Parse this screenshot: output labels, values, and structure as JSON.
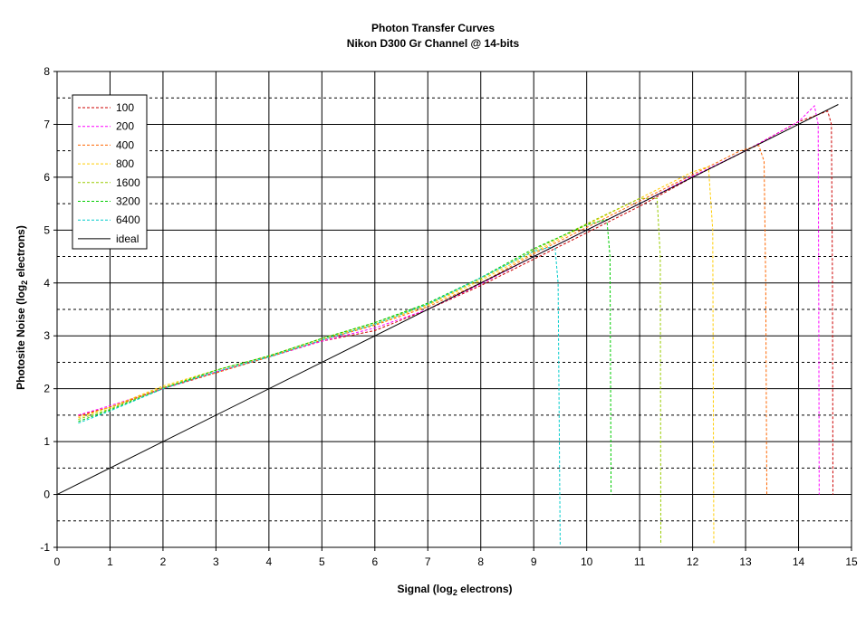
{
  "chart_data": {
    "type": "line",
    "title": "Photon Transfer Curves",
    "subtitle": "Nikon D300 Gr Channel @ 14-bits",
    "xlabel": {
      "prefix": "Signal (log",
      "sub": "2",
      "suffix": " electrons)"
    },
    "ylabel": {
      "prefix": "Photosite Noise (log",
      "sub": "2",
      "suffix": " electrons)"
    },
    "xlim": [
      0,
      15
    ],
    "ylim": [
      -1,
      8
    ],
    "xticks": [
      "0",
      "1",
      "2",
      "3",
      "4",
      "5",
      "6",
      "7",
      "8",
      "9",
      "10",
      "11",
      "12",
      "13",
      "14",
      "15"
    ],
    "yticks": [
      "-1",
      "0",
      "1",
      "2",
      "3",
      "4",
      "5",
      "6",
      "7",
      "8"
    ],
    "grid": {
      "major_x": true,
      "major_y": true,
      "minor_y_dashed": true
    },
    "legend": {
      "placement": "top-left"
    },
    "ideal": {
      "name": "ideal",
      "color": "#000000",
      "x": [
        0,
        14.75
      ],
      "y": [
        0,
        7.375
      ]
    },
    "series": [
      {
        "name": "100",
        "color": "#cc0000",
        "x": [
          0.4,
          1,
          2,
          3,
          4,
          5,
          6,
          7,
          8,
          9,
          10,
          11,
          12,
          13,
          14,
          14.55,
          14.62,
          14.64,
          14.65
        ],
        "y": [
          1.5,
          1.65,
          2.0,
          2.3,
          2.6,
          2.9,
          3.1,
          3.5,
          3.95,
          4.45,
          4.95,
          5.45,
          6.0,
          6.5,
          7.05,
          7.25,
          7.0,
          4.0,
          0.0
        ]
      },
      {
        "name": "200",
        "color": "#ff00ff",
        "x": [
          0.4,
          1,
          2,
          3,
          4,
          5,
          6,
          7,
          8,
          9,
          10,
          11,
          12,
          13,
          14,
          14.3,
          14.37,
          14.38,
          14.39
        ],
        "y": [
          1.5,
          1.68,
          2.0,
          2.32,
          2.6,
          2.9,
          3.15,
          3.5,
          3.98,
          4.5,
          5.0,
          5.5,
          6.02,
          6.5,
          7.05,
          7.35,
          7.0,
          4.0,
          0.0
        ]
      },
      {
        "name": "400",
        "color": "#ff6600",
        "x": [
          0.4,
          1,
          2,
          3,
          4,
          5,
          6,
          7,
          8,
          9,
          10,
          11,
          12,
          12.9,
          13.25,
          13.35,
          13.38,
          13.4
        ],
        "y": [
          1.48,
          1.65,
          2.02,
          2.3,
          2.6,
          2.92,
          3.2,
          3.55,
          4.0,
          4.55,
          5.05,
          5.55,
          6.05,
          6.5,
          6.6,
          6.3,
          4.0,
          0.0
        ]
      },
      {
        "name": "800",
        "color": "#ffcc00",
        "x": [
          0.4,
          1,
          2,
          3,
          4,
          5,
          6,
          7,
          8,
          9,
          10,
          11,
          12,
          12.3,
          12.38,
          12.4
        ],
        "y": [
          1.45,
          1.65,
          2.05,
          2.35,
          2.62,
          2.95,
          3.22,
          3.58,
          4.05,
          4.58,
          5.1,
          5.6,
          6.1,
          6.2,
          5.0,
          -0.95
        ]
      },
      {
        "name": "1600",
        "color": "#99cc00",
        "x": [
          0.4,
          1,
          2,
          3,
          4,
          5,
          6,
          7,
          8,
          9,
          10,
          11,
          11.33,
          11.39,
          11.4
        ],
        "y": [
          1.42,
          1.62,
          2.02,
          2.35,
          2.62,
          2.95,
          3.25,
          3.6,
          4.08,
          4.62,
          5.12,
          5.6,
          5.6,
          4.5,
          -0.95
        ]
      },
      {
        "name": "3200",
        "color": "#00cc00",
        "x": [
          0.4,
          1,
          2,
          3,
          4,
          5,
          6,
          7,
          8,
          9,
          10,
          10.38,
          10.44,
          10.46
        ],
        "y": [
          1.38,
          1.6,
          2.0,
          2.35,
          2.62,
          2.95,
          3.25,
          3.62,
          4.1,
          4.65,
          5.1,
          5.2,
          4.5,
          0.0
        ]
      },
      {
        "name": "6400",
        "color": "#00cccc",
        "x": [
          0.4,
          1,
          2,
          3,
          4,
          5,
          6,
          7,
          8,
          9,
          9.4,
          9.46,
          9.5
        ],
        "y": [
          1.35,
          1.58,
          2.0,
          2.32,
          2.6,
          2.92,
          3.22,
          3.6,
          4.1,
          4.6,
          4.7,
          4.0,
          -0.95
        ]
      }
    ]
  }
}
